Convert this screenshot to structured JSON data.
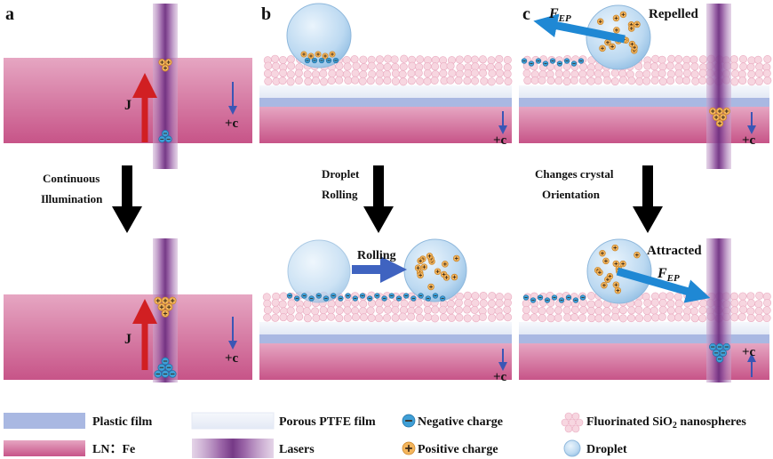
{
  "panels": {
    "a": {
      "letter": "a",
      "current": "J",
      "axis": "+c",
      "step": [
        "Continuous",
        "Illumination"
      ]
    },
    "b": {
      "letter": "b",
      "axis_top": "+c",
      "axis_bottom": "+c",
      "step": [
        "Droplet",
        "Rolling"
      ],
      "rolling": "Rolling"
    },
    "c": {
      "letter": "c",
      "repelled": "Repelled",
      "attracted": "Attracted",
      "force": "F",
      "force_sub": "EP",
      "axis_top": "+c",
      "axis_bottom": "+c",
      "step": [
        "Changes crystal",
        "Orientation"
      ]
    }
  },
  "legend": {
    "plastic": "Plastic film",
    "ln_prefix": "LN：",
    "ln_suffix": "Fe",
    "ptfe": "Porous PTFE film",
    "lasers": "Lasers",
    "negative": "Negative charge",
    "positive": "Positive charge",
    "sio2_prefix": "Fluorinated SiO",
    "sio2_sub": "2",
    "sio2_suffix": " nanospheres",
    "droplet": "Droplet"
  },
  "colors": {
    "ln_top": "#d98cae",
    "ln_bottom": "#c75488",
    "plastic": "#a9b8e2",
    "ptfe": "#e9eef8",
    "laser": "#8b4d9a",
    "current_arrow": "#d11f22",
    "c_axis": "#3a56b5",
    "force_arrow": "#1f88d4",
    "rolling_arrow": "#3f63c0",
    "droplet": "#bcd9f1",
    "positive": "#f4b55c",
    "negative": "#3f9fd6",
    "nanosphere": "#f5cfdb"
  }
}
